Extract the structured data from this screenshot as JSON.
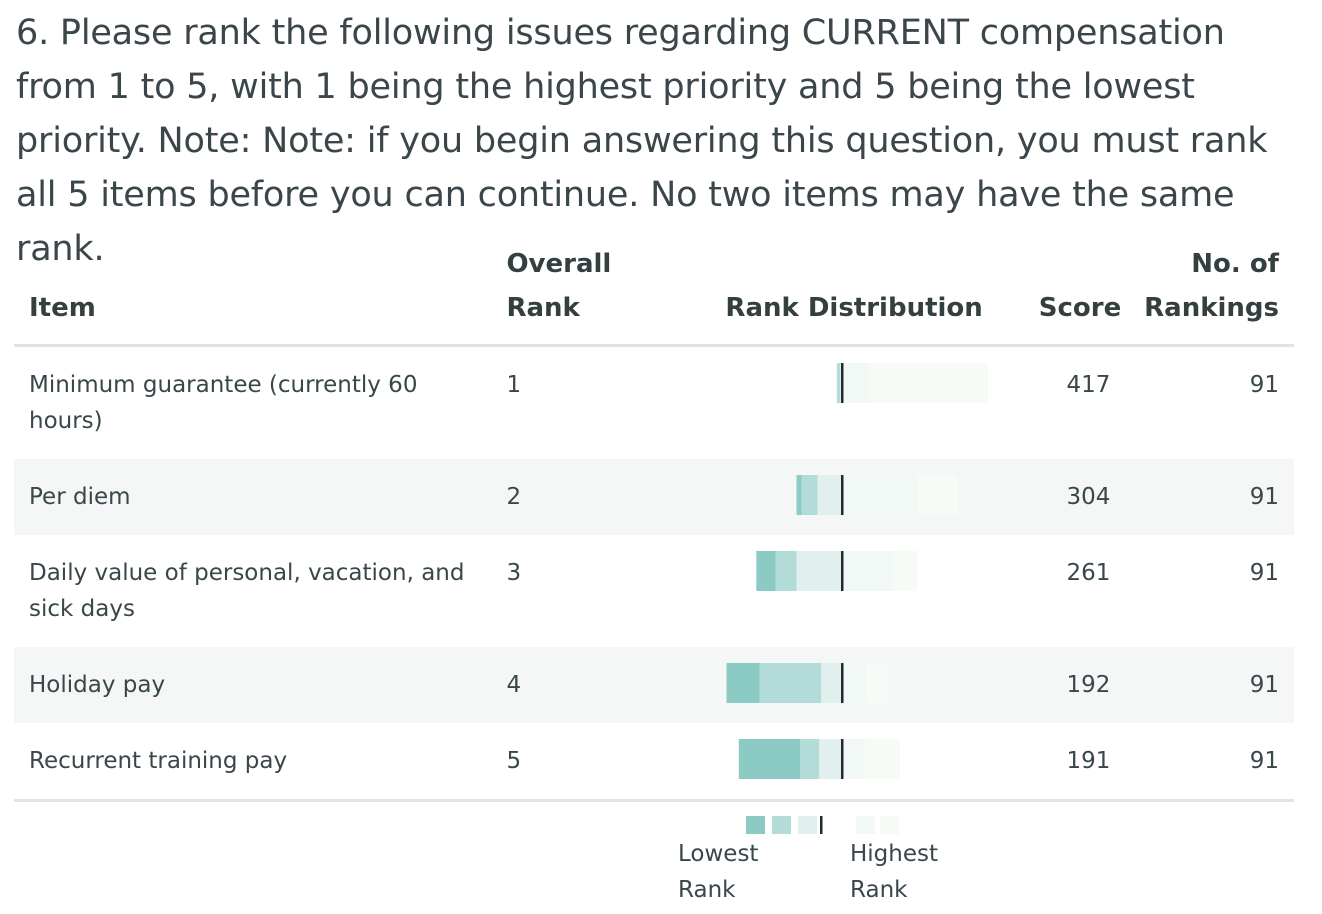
{
  "question": "6. Please rank the following issues regarding CURRENT compensation from 1 to 5, with 1 being the highest priority and 5 being the lowest priority. Note: Note: if you begin answering this question, you must rank all 5 items before you can continue.  No two items may have the same rank.",
  "headers": {
    "item": "Item",
    "overall_rank": "Overall Rank",
    "rank_distribution": "Rank Distribution",
    "score": "Score",
    "no_of_rankings": "No. of Rankings"
  },
  "legend": {
    "lowest": "Lowest Rank",
    "highest": "Highest Rank"
  },
  "colors": {
    "rank5": "#8ccbc4",
    "rank4": "#b3dcd8",
    "rank3": "#e1f0ef",
    "rank2": "#f2f8f6",
    "rank1": "#f7fbf5",
    "divider": "#1f2a2c"
  },
  "chart_data": {
    "type": "table",
    "rank_order_of_distribution": [
      5,
      4,
      3,
      2,
      1
    ],
    "rows": [
      {
        "item": "Minimum guarantee (currently 60 hours)",
        "overall_rank": "1",
        "score": "417",
        "rankings": "91",
        "distribution": [
          0,
          2,
          1,
          14,
          74
        ]
      },
      {
        "item": "Per diem",
        "overall_rank": "2",
        "score": "304",
        "rankings": "91",
        "distribution": [
          3,
          9,
          14,
          42,
          23
        ]
      },
      {
        "item": "Daily value of personal, vacation, and sick days",
        "overall_rank": "3",
        "score": "261",
        "rankings": "91",
        "distribution": [
          11,
          12,
          26,
          28,
          14
        ]
      },
      {
        "item": "Holiday pay",
        "overall_rank": "4",
        "score": "192",
        "rankings": "91",
        "distribution": [
          19,
          35,
          12,
          13,
          12
        ]
      },
      {
        "item": "Recurrent training pay",
        "overall_rank": "5",
        "score": "191",
        "rankings": "91",
        "distribution": [
          35,
          11,
          13,
          12,
          20
        ]
      }
    ]
  }
}
